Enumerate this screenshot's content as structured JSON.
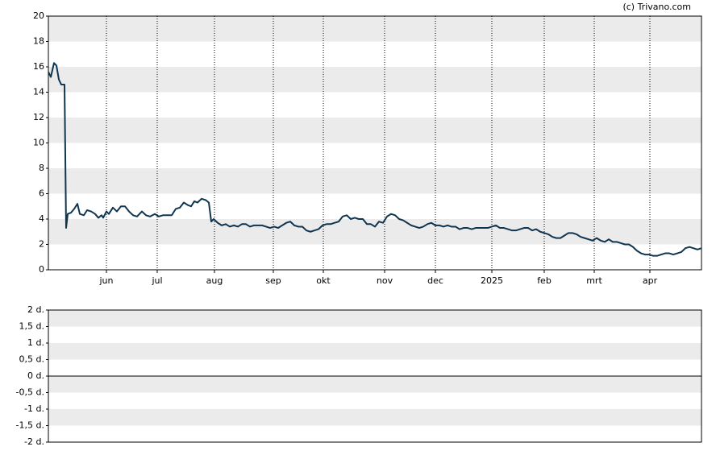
{
  "chart_data": [
    {
      "type": "line",
      "source": "(c) Trivano.com",
      "x": [
        0,
        0.6,
        1.4,
        2,
        2.6,
        3.2,
        4,
        4.4,
        4.8,
        5.6,
        6.4,
        7.2,
        7.8,
        8.8,
        9.6,
        10.6,
        11.6,
        12.4,
        13.2,
        13.6,
        14.4,
        15,
        16,
        17,
        18,
        19,
        20,
        21,
        22,
        23.2,
        24.2,
        25.2,
        26.4,
        27.4,
        28.4,
        29.6,
        30.6,
        31.6,
        32.6,
        33.6,
        34.6,
        35.4,
        36.2,
        37,
        38,
        39,
        39.8,
        40.4,
        41,
        42,
        43,
        44,
        45,
        46,
        47,
        48,
        49,
        50,
        51,
        52,
        53,
        54,
        55,
        56,
        57,
        58,
        59,
        60,
        61,
        62,
        63,
        64,
        65,
        66,
        67,
        68,
        69,
        70,
        71,
        72,
        73,
        74,
        75,
        76,
        77,
        78,
        79,
        80,
        81,
        82,
        83,
        84,
        85,
        86,
        87,
        88,
        89,
        90,
        91,
        92,
        93,
        94,
        95,
        96,
        97,
        98,
        99,
        100,
        101,
        102,
        103,
        104,
        105,
        106,
        107,
        108,
        109,
        110,
        111,
        112,
        113,
        114,
        115,
        116,
        117,
        118,
        119,
        120,
        121,
        122,
        123,
        124,
        125,
        126,
        127,
        128,
        129,
        130,
        131,
        132,
        133,
        134,
        135,
        136,
        137,
        138,
        139,
        140,
        141,
        142,
        143,
        144,
        145,
        146,
        147,
        148,
        149,
        150,
        151,
        152,
        153,
        154,
        155,
        156,
        157,
        158,
        159,
        160,
        161,
        162
      ],
      "series": [
        {
          "color": "#0f3550",
          "values": [
            15.6,
            15.2,
            16.3,
            16.1,
            15.0,
            14.6,
            14.6,
            3.3,
            4.4,
            4.5,
            4.8,
            5.2,
            4.4,
            4.3,
            4.7,
            4.6,
            4.4,
            4.1,
            4.3,
            4.1,
            4.6,
            4.4,
            4.9,
            4.6,
            5.0,
            5.0,
            4.6,
            4.3,
            4.2,
            4.6,
            4.3,
            4.2,
            4.4,
            4.2,
            4.3,
            4.3,
            4.3,
            4.8,
            4.9,
            5.3,
            5.1,
            5.0,
            5.4,
            5.3,
            5.6,
            5.5,
            5.3,
            3.8,
            4.0,
            3.7,
            3.5,
            3.6,
            3.4,
            3.5,
            3.4,
            3.6,
            3.6,
            3.4,
            3.5,
            3.5,
            3.5,
            3.4,
            3.3,
            3.4,
            3.3,
            3.5,
            3.7,
            3.8,
            3.5,
            3.4,
            3.4,
            3.1,
            3.0,
            3.1,
            3.2,
            3.5,
            3.6,
            3.6,
            3.7,
            3.8,
            4.2,
            4.3,
            4.0,
            4.1,
            4.0,
            4.0,
            3.6,
            3.6,
            3.4,
            3.8,
            3.7,
            4.2,
            4.4,
            4.3,
            4.0,
            3.9,
            3.7,
            3.5,
            3.4,
            3.3,
            3.4,
            3.6,
            3.7,
            3.5,
            3.5,
            3.4,
            3.5,
            3.4,
            3.4,
            3.2,
            3.3,
            3.3,
            3.2,
            3.3,
            3.3,
            3.3,
            3.3,
            3.4,
            3.5,
            3.3,
            3.3,
            3.2,
            3.1,
            3.1,
            3.2,
            3.3,
            3.3,
            3.1,
            3.2,
            3.0,
            2.9,
            2.8,
            2.6,
            2.5,
            2.5,
            2.7,
            2.9,
            2.9,
            2.8,
            2.6,
            2.5,
            2.4,
            2.3,
            2.5,
            2.3,
            2.2,
            2.4,
            2.2,
            2.2,
            2.1,
            2.0,
            2.0,
            1.8,
            1.5,
            1.3,
            1.2,
            1.2,
            1.1,
            1.1,
            1.2,
            1.3,
            1.3,
            1.2,
            1.3,
            1.4,
            1.7,
            1.8,
            1.7,
            1.6,
            1.7
          ]
        }
      ],
      "xlim": [
        0,
        162
      ],
      "xticks": [
        {
          "value": 14.4,
          "label": "jun"
        },
        {
          "value": 27,
          "label": "jul"
        },
        {
          "value": 41.2,
          "label": "aug"
        },
        {
          "value": 55.8,
          "label": "sep"
        },
        {
          "value": 68.2,
          "label": "okt"
        },
        {
          "value": 83.4,
          "label": "nov"
        },
        {
          "value": 96,
          "label": "dec"
        },
        {
          "value": 110,
          "label": "2025"
        },
        {
          "value": 123,
          "label": "feb"
        },
        {
          "value": 135.4,
          "label": "mrt"
        },
        {
          "value": 149.2,
          "label": "apr"
        }
      ],
      "ylim": [
        0,
        20
      ],
      "yticks": [
        0,
        2,
        4,
        6,
        8,
        10,
        12,
        14,
        16,
        18,
        20
      ],
      "grid": true
    },
    {
      "type": "line",
      "ylim": [
        -2,
        2
      ],
      "yticks": [
        {
          "value": -2,
          "label": "-2 d."
        },
        {
          "value": -1.5,
          "label": "-1,5 d."
        },
        {
          "value": -1,
          "label": "-1 d."
        },
        {
          "value": -0.5,
          "label": "-0,5 d."
        },
        {
          "value": 0,
          "label": "0 d."
        },
        {
          "value": 0.5,
          "label": "0,5 d."
        },
        {
          "value": 1,
          "label": "1 d."
        },
        {
          "value": 1.5,
          "label": "1,5 d."
        },
        {
          "value": 2,
          "label": "2 d."
        }
      ],
      "zero_line": true
    }
  ]
}
